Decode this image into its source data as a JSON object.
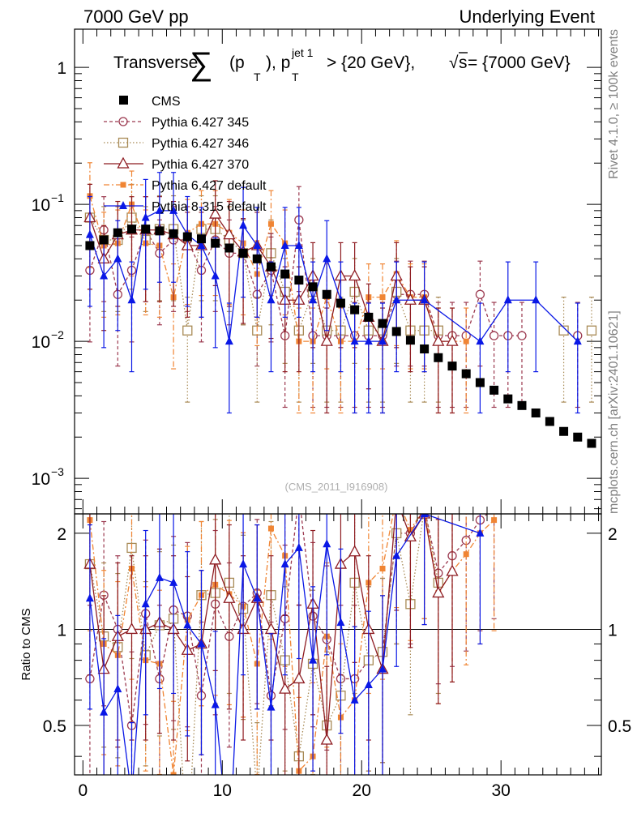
{
  "header": {
    "left": "7000 GeV pp",
    "right": "Underlying Event"
  },
  "side_labels": {
    "rivet": "Rivet 4.1.0, ≥ 100k events",
    "mcplots": "mcplots.cern.ch [arXiv:2401.10621]"
  },
  "chart_data": {
    "type": "scatter",
    "title_parts": {
      "prefix": "Transverse",
      "sum_symbol": "∑",
      "open": "(p",
      "sub_t1": "T",
      "close": "), p",
      "sup_jet": "jet 1",
      "sub_t2": "T",
      "cut": " > {20 GeV}, ",
      "sqrt_symbol": "√",
      "s_letter": "s",
      "energy": " = {7000 GeV}"
    },
    "watermark": "(CMS_2011_I916908)",
    "main_panel": {
      "yscale": "log",
      "ylim": [
        0.00055,
        1.9
      ],
      "ytick_labels": [
        {
          "value": 1,
          "base": "1",
          "exp": ""
        },
        {
          "value": 0.1,
          "base": "10",
          "exp": "−1"
        },
        {
          "value": 0.01,
          "base": "10",
          "exp": "−2"
        },
        {
          "value": 0.001,
          "base": "10",
          "exp": "−3"
        }
      ]
    },
    "ratio_panel": {
      "ylabel": "Ratio to CMS",
      "ylim": [
        0.35,
        2.3
      ],
      "ytick_labels": [
        "2",
        "1",
        "0.5"
      ],
      "ytick_values": [
        2,
        1,
        0.5
      ]
    },
    "xlim": [
      -0.6,
      37.2
    ],
    "xtick_labels": [
      "0",
      "10",
      "20",
      "30"
    ],
    "xtick_values": [
      0,
      10,
      20,
      30
    ],
    "legend": {
      "position": "top-left",
      "entries": [
        "CMS",
        "Pythia 6.427 345",
        "Pythia 6.427 346",
        "Pythia 6.427 370",
        "Pythia 6.427 default",
        "Pythia 8.315 default"
      ]
    },
    "colors": {
      "cms": "#000000",
      "p345": "#9c3a50",
      "p346": "#a88a55",
      "p370": "#8e1c22",
      "pdef": "#f08534",
      "p8": "#0a18e6"
    },
    "series": [
      {
        "name": "CMS",
        "x": [
          0.5,
          1.5,
          2.5,
          3.5,
          4.5,
          5.5,
          6.5,
          7.5,
          8.5,
          9.5,
          10.5,
          11.5,
          12.5,
          13.5,
          14.5,
          15.5,
          16.5,
          17.5,
          18.5,
          19.5,
          20.5,
          21.5,
          22.5,
          23.5,
          24.5,
          25.5,
          26.5,
          27.5,
          28.5,
          29.5,
          30.5,
          31.5,
          32.5,
          33.5,
          34.5,
          35.5,
          36.5
        ],
        "y": [
          0.05,
          0.055,
          0.062,
          0.066,
          0.066,
          0.064,
          0.061,
          0.058,
          0.056,
          0.052,
          0.048,
          0.044,
          0.04,
          0.035,
          0.031,
          0.028,
          0.025,
          0.022,
          0.019,
          0.017,
          0.015,
          0.0135,
          0.0118,
          0.0102,
          0.0088,
          0.0076,
          0.0066,
          0.0058,
          0.005,
          0.0044,
          0.0038,
          0.0034,
          0.003,
          0.0026,
          0.0022,
          0.002,
          0.0018
        ]
      },
      {
        "name": "Pythia 6.427 345",
        "x": [
          0.5,
          1.5,
          2.5,
          3.5,
          4.5,
          5.5,
          6.5,
          7.5,
          8.5,
          9.5,
          10.5,
          11.5,
          12.5,
          13.5,
          14.5,
          15.5,
          16.5,
          17.5,
          18.5,
          19.5,
          20.5,
          21.5,
          22.5,
          23.5,
          24.5,
          25.5,
          26.5,
          27.5,
          28.5,
          29.5,
          30.5,
          31.5,
          32.5,
          33.5,
          34.5,
          35.5,
          36.5
        ],
        "y": [
          0.033,
          0.065,
          0.022,
          0.033,
          0.065,
          0.044,
          0.055,
          0.055,
          0.033,
          0.055,
          0.044,
          0.044,
          0.022,
          0.033,
          0.011,
          0.077,
          0.011,
          0.011,
          0.011,
          0.011,
          0.011,
          0.011,
          0.022,
          0.022,
          0.022,
          0.011,
          0.011,
          0.011,
          0.022,
          0.011,
          0.011,
          0.011,
          null,
          null,
          null,
          0.011,
          null
        ],
        "ratio": [
          0.7,
          1.28,
          1.0,
          0.5,
          1.12,
          0.7,
          1.15,
          1.1,
          0.62,
          1.2,
          0.95,
          1.18,
          1.3,
          0.62,
          1.08,
          2.65,
          1.1,
          0.93,
          0.7,
          0.7,
          0.8,
          0.85,
          2.0,
          2.0,
          2.4,
          1.5,
          1.7,
          1.9,
          2.2,
          2.4,
          null,
          null,
          null,
          null,
          null,
          null,
          null
        ]
      },
      {
        "name": "Pythia 6.427 346",
        "x": [
          0.5,
          1.5,
          2.5,
          3.5,
          4.5,
          5.5,
          6.5,
          7.5,
          8.5,
          9.5,
          10.5,
          11.5,
          12.5,
          13.5,
          14.5,
          15.5,
          16.5,
          17.5,
          18.5,
          19.5,
          20.5,
          21.5,
          22.5,
          23.5,
          24.5,
          25.5,
          26.5,
          27.5,
          28.5,
          29.5,
          30.5,
          31.5,
          32.5,
          33.5,
          34.5,
          35.5,
          36.5
        ],
        "y": [
          0.08,
          0.055,
          0.055,
          0.08,
          0.055,
          0.066,
          0.066,
          0.012,
          0.066,
          0.066,
          0.055,
          0.044,
          0.012,
          0.044,
          0.023,
          0.012,
          0.023,
          0.012,
          0.012,
          0.023,
          0.012,
          0.012,
          0.023,
          0.012,
          0.012,
          0.012,
          null,
          null,
          null,
          null,
          null,
          null,
          null,
          null,
          0.012,
          null,
          0.012
        ],
        "ratio": [
          1.6,
          0.95,
          0.88,
          1.8,
          0.83,
          1.03,
          1.08,
          0.2,
          1.28,
          1.3,
          1.4,
          1.16,
          0.3,
          1.28,
          0.8,
          0.4,
          0.78,
          0.5,
          0.62,
          1.4,
          0.8,
          0.85,
          2.0,
          1.2,
          2.4,
          1.4,
          null,
          null,
          null,
          null,
          null,
          null,
          null,
          null,
          null,
          null,
          null
        ]
      },
      {
        "name": "Pythia 6.427 370",
        "x": [
          0.5,
          1.5,
          2.5,
          3.5,
          4.5,
          5.5,
          6.5,
          7.5,
          8.5,
          9.5,
          10.5,
          11.5,
          12.5,
          13.5,
          14.5,
          15.5,
          16.5,
          17.5,
          18.5,
          19.5,
          20.5,
          21.5,
          22.5,
          23.5,
          24.5,
          25.5,
          26.5
        ],
        "y": [
          0.08,
          0.04,
          0.06,
          0.065,
          0.065,
          0.065,
          0.06,
          0.05,
          0.05,
          0.085,
          0.06,
          0.045,
          0.05,
          0.035,
          0.02,
          0.02,
          0.03,
          0.01,
          0.03,
          0.03,
          0.015,
          0.01,
          0.03,
          0.02,
          0.02,
          0.01,
          0.01
        ],
        "ratio": [
          1.6,
          0.75,
          0.95,
          1.0,
          1.0,
          1.05,
          1.0,
          0.86,
          0.9,
          1.65,
          1.25,
          1.0,
          1.25,
          1.0,
          0.65,
          0.7,
          1.2,
          0.45,
          1.6,
          1.75,
          1.0,
          0.75,
          2.55,
          1.95,
          2.3,
          1.3,
          1.52
        ]
      },
      {
        "name": "Pythia 6.427 default",
        "x": [
          0.5,
          1.5,
          2.5,
          3.5,
          4.5,
          5.5,
          6.5,
          7.5,
          8.5,
          9.5,
          10.5,
          11.5,
          12.5,
          13.5,
          14.5,
          15.5,
          16.5,
          17.5,
          18.5,
          19.5,
          20.5,
          21.5,
          22.5,
          23.5,
          24.5,
          25.5,
          26.5,
          27.5,
          28.5,
          29.5
        ],
        "y": [
          0.115,
          0.05,
          0.052,
          0.1,
          0.052,
          0.05,
          0.021,
          0.062,
          0.072,
          0.072,
          0.062,
          0.052,
          0.031,
          0.072,
          0.052,
          0.01,
          0.01,
          0.021,
          0.01,
          0.01,
          0.021,
          0.021,
          0.031,
          0.021,
          0.021,
          0.01,
          0.01,
          0.01,
          null,
          null
        ],
        "ratio": [
          2.2,
          0.9,
          0.83,
          1.55,
          0.8,
          0.78,
          0.35,
          1.07,
          1.28,
          1.38,
          1.29,
          1.18,
          0.78,
          2.07,
          1.7,
          0.36,
          0.4,
          0.95,
          0.53,
          0.6,
          1.4,
          1.55,
          2.6,
          2.05,
          2.4,
          1.3,
          1.52,
          1.72,
          2.0,
          2.2
        ]
      },
      {
        "name": "Pythia 8.315 default",
        "x": [
          0.5,
          1.5,
          2.5,
          3.5,
          4.5,
          5.5,
          6.5,
          7.5,
          8.5,
          9.5,
          10.5,
          11.5,
          12.5,
          13.5,
          14.5,
          15.5,
          16.5,
          17.5,
          18.5,
          19.5,
          20.5,
          21.5,
          22.5,
          24.5,
          28.5,
          30.5,
          32.5,
          35.5
        ],
        "y": [
          0.06,
          0.03,
          0.04,
          0.02,
          0.08,
          0.09,
          0.09,
          0.06,
          0.05,
          0.03,
          0.01,
          0.07,
          0.05,
          0.02,
          0.05,
          0.05,
          0.02,
          0.04,
          0.02,
          0.01,
          0.01,
          0.01,
          0.02,
          0.02,
          0.01,
          0.02,
          0.02,
          0.01
        ],
        "ratio": [
          1.25,
          0.55,
          0.65,
          0.3,
          1.2,
          1.45,
          1.4,
          1.03,
          0.9,
          0.58,
          0.2,
          1.6,
          1.25,
          0.57,
          1.6,
          1.8,
          0.8,
          1.85,
          1.05,
          0.6,
          0.67,
          0.75,
          1.7,
          2.3,
          2.0,
          null,
          null,
          null
        ]
      }
    ]
  }
}
